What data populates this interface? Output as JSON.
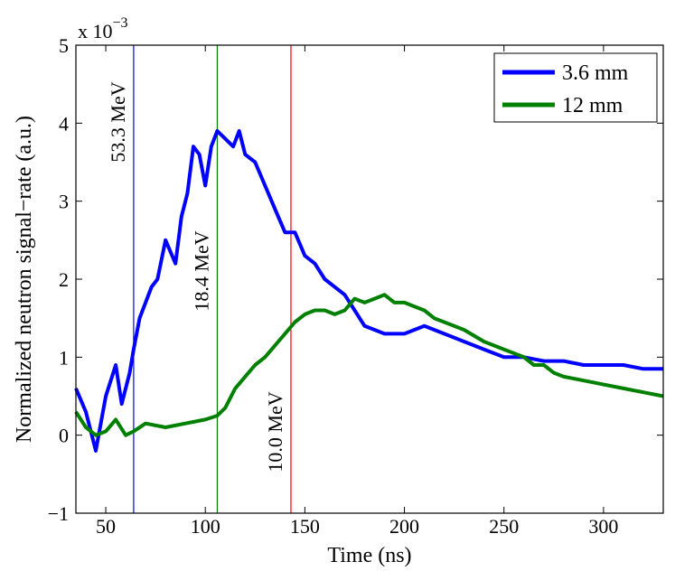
{
  "chart_data": {
    "type": "line",
    "xlabel": "Time (ns)",
    "ylabel": "Normalized neutron signal−rate (a.u.)",
    "y_multiplier_label": "x 10",
    "y_multiplier_exponent": "−3",
    "xlim": [
      35,
      330
    ],
    "ylim": [
      -1,
      5
    ],
    "x_ticks": [
      50,
      100,
      150,
      200,
      250,
      300
    ],
    "y_ticks": [
      -1,
      0,
      1,
      2,
      3,
      4,
      5
    ],
    "x_tick_labels": [
      "50",
      "100",
      "150",
      "200",
      "250",
      "300"
    ],
    "y_tick_labels": [
      "−1",
      "0",
      "1",
      "2",
      "3",
      "4",
      "5"
    ],
    "legend": {
      "position": "top-right",
      "entries": [
        "3.6 mm",
        "12 mm"
      ]
    },
    "energy_markers": [
      {
        "time": 64,
        "label": "53.3 MeV",
        "color": "#0000ff"
      },
      {
        "time": 106,
        "label": "18.4 MeV",
        "color": "#008000"
      },
      {
        "time": 143,
        "label": "10.0 MeV",
        "color": "#ff0000"
      }
    ],
    "series": [
      {
        "name": "3.6 mm",
        "color": "#0000ff",
        "points": [
          [
            35,
            0.6
          ],
          [
            40,
            0.3
          ],
          [
            45,
            -0.2
          ],
          [
            50,
            0.5
          ],
          [
            55,
            0.9
          ],
          [
            58,
            0.4
          ],
          [
            62,
            0.8
          ],
          [
            64,
            1.1
          ],
          [
            67,
            1.5
          ],
          [
            70,
            1.7
          ],
          [
            73,
            1.9
          ],
          [
            76,
            2.0
          ],
          [
            80,
            2.5
          ],
          [
            85,
            2.2
          ],
          [
            88,
            2.8
          ],
          [
            91,
            3.1
          ],
          [
            94,
            3.7
          ],
          [
            97,
            3.6
          ],
          [
            100,
            3.2
          ],
          [
            103,
            3.7
          ],
          [
            106,
            3.9
          ],
          [
            110,
            3.8
          ],
          [
            114,
            3.7
          ],
          [
            117,
            3.9
          ],
          [
            120,
            3.6
          ],
          [
            125,
            3.5
          ],
          [
            130,
            3.2
          ],
          [
            135,
            2.9
          ],
          [
            140,
            2.6
          ],
          [
            145,
            2.6
          ],
          [
            150,
            2.3
          ],
          [
            155,
            2.2
          ],
          [
            160,
            2.0
          ],
          [
            165,
            1.9
          ],
          [
            170,
            1.8
          ],
          [
            175,
            1.6
          ],
          [
            180,
            1.4
          ],
          [
            190,
            1.3
          ],
          [
            200,
            1.3
          ],
          [
            210,
            1.4
          ],
          [
            220,
            1.3
          ],
          [
            230,
            1.2
          ],
          [
            240,
            1.1
          ],
          [
            250,
            1.0
          ],
          [
            260,
            1.0
          ],
          [
            270,
            0.95
          ],
          [
            280,
            0.95
          ],
          [
            290,
            0.9
          ],
          [
            300,
            0.9
          ],
          [
            310,
            0.9
          ],
          [
            320,
            0.85
          ],
          [
            330,
            0.85
          ]
        ]
      },
      {
        "name": "12 mm",
        "color": "#008000",
        "points": [
          [
            35,
            0.3
          ],
          [
            40,
            0.1
          ],
          [
            45,
            0.0
          ],
          [
            50,
            0.05
          ],
          [
            55,
            0.2
          ],
          [
            60,
            0.0
          ],
          [
            64,
            0.05
          ],
          [
            70,
            0.15
          ],
          [
            80,
            0.1
          ],
          [
            90,
            0.15
          ],
          [
            100,
            0.2
          ],
          [
            106,
            0.25
          ],
          [
            110,
            0.35
          ],
          [
            115,
            0.6
          ],
          [
            120,
            0.75
          ],
          [
            125,
            0.9
          ],
          [
            130,
            1.0
          ],
          [
            135,
            1.15
          ],
          [
            140,
            1.3
          ],
          [
            145,
            1.45
          ],
          [
            150,
            1.55
          ],
          [
            155,
            1.6
          ],
          [
            160,
            1.6
          ],
          [
            165,
            1.55
          ],
          [
            170,
            1.6
          ],
          [
            175,
            1.75
          ],
          [
            180,
            1.7
          ],
          [
            185,
            1.75
          ],
          [
            190,
            1.8
          ],
          [
            195,
            1.7
          ],
          [
            200,
            1.7
          ],
          [
            205,
            1.65
          ],
          [
            210,
            1.6
          ],
          [
            215,
            1.5
          ],
          [
            220,
            1.45
          ],
          [
            230,
            1.35
          ],
          [
            240,
            1.2
          ],
          [
            250,
            1.1
          ],
          [
            260,
            1.0
          ],
          [
            265,
            0.9
          ],
          [
            270,
            0.9
          ],
          [
            275,
            0.8
          ],
          [
            280,
            0.75
          ],
          [
            290,
            0.7
          ],
          [
            300,
            0.65
          ],
          [
            310,
            0.6
          ],
          [
            320,
            0.55
          ],
          [
            330,
            0.5
          ]
        ]
      }
    ]
  }
}
